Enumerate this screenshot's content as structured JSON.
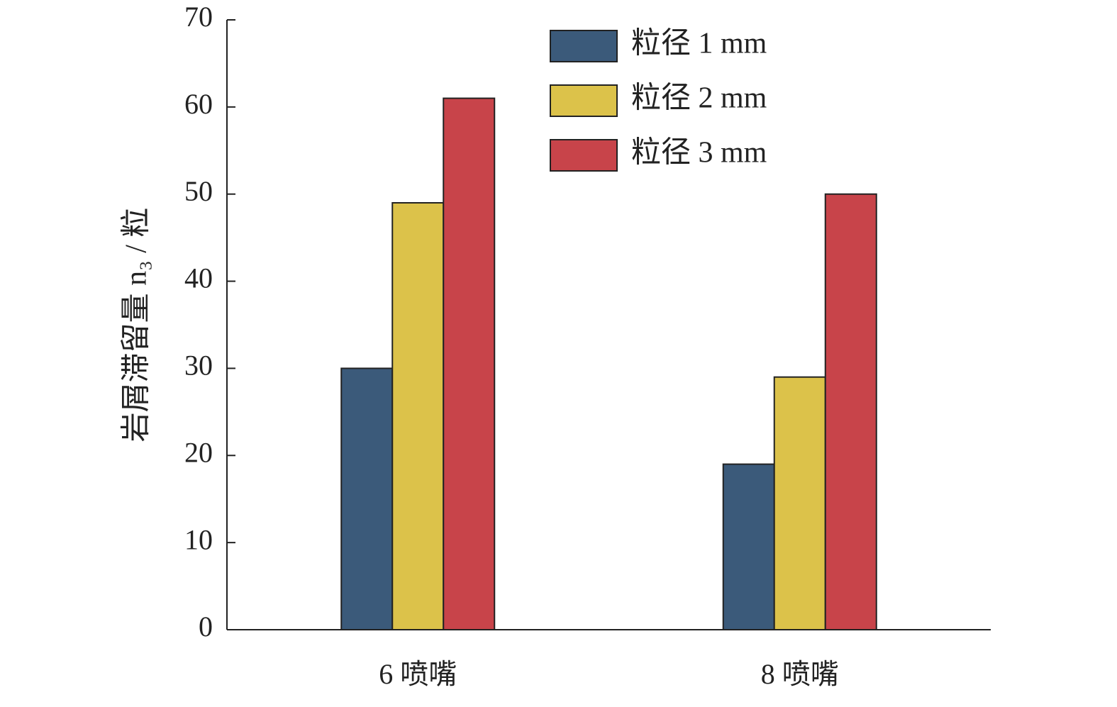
{
  "chart_data": {
    "type": "bar",
    "y_label": "岩屑滞留量 n₃ / 粒",
    "categories": [
      "6 喷嘴",
      "8 喷嘴"
    ],
    "series": [
      {
        "name": "粒径 1 mm",
        "color": "#3b5a7a",
        "values": [
          30,
          19
        ]
      },
      {
        "name": "粒径 2 mm",
        "color": "#dcc24a",
        "values": [
          49,
          29
        ]
      },
      {
        "name": "粒径 3 mm",
        "color": "#c8444a",
        "values": [
          61,
          50
        ]
      }
    ],
    "ylim": [
      0,
      70
    ],
    "yticks": [
      0,
      10,
      20,
      30,
      40,
      50,
      60,
      70
    ],
    "grid": false,
    "legend": "upper right"
  }
}
